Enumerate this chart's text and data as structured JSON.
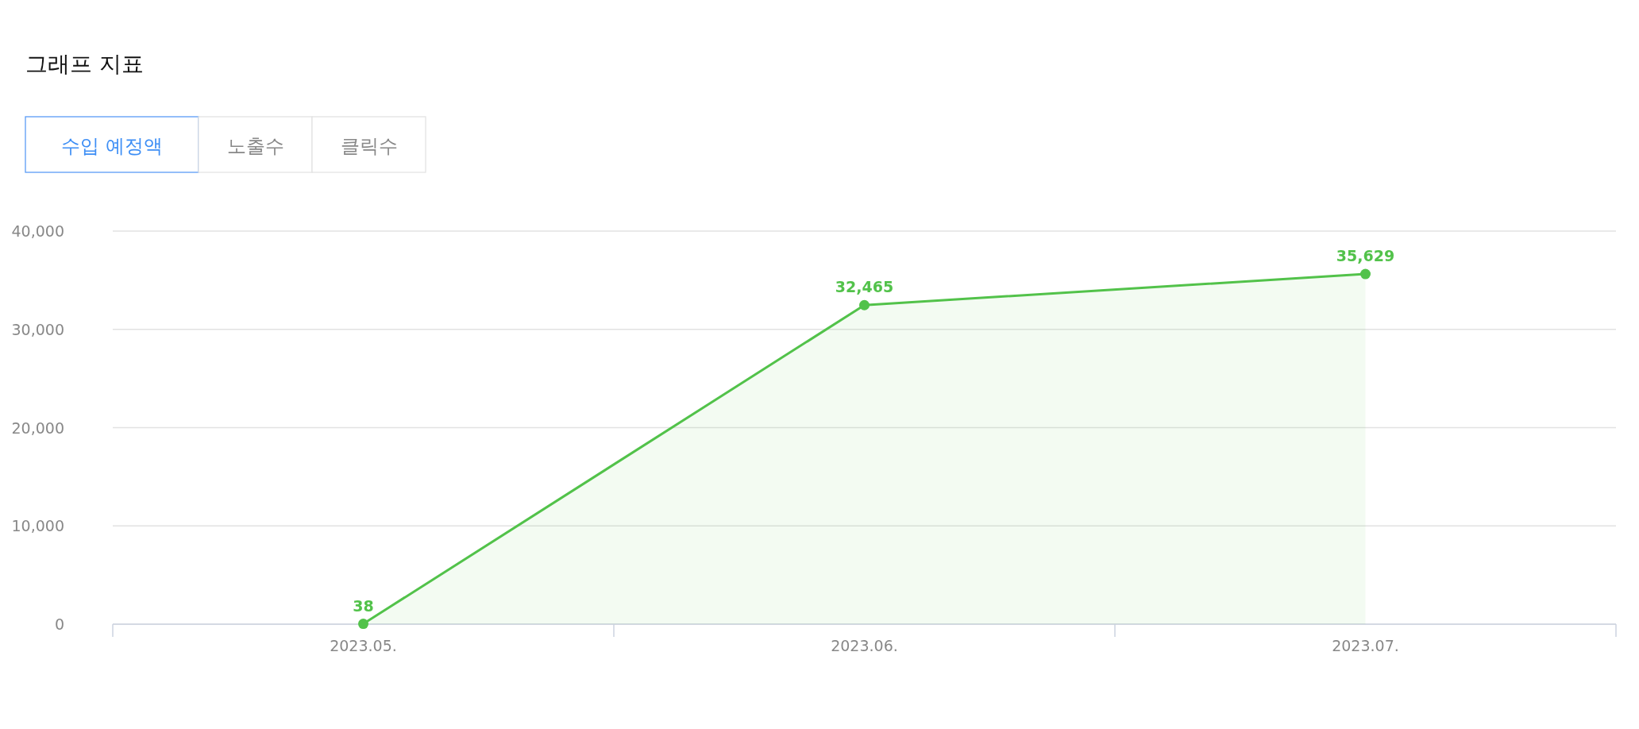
{
  "chart_data": {
    "type": "area",
    "title": "그래프 지표",
    "annotations": [
      "수입 예정액",
      "노출수",
      "클릭수"
    ],
    "categories": [
      "2023.05.",
      "2023.06.",
      "2023.07."
    ],
    "series": [
      {
        "color": "#52c24a",
        "values": [
          38,
          32465,
          35629
        ],
        "value_labels": [
          "38",
          "32,465",
          "35,629"
        ]
      }
    ],
    "ylim": [
      0,
      40000
    ],
    "yticks": [
      {
        "value": 0,
        "label": "0"
      },
      {
        "value": 10000,
        "label": "10,000"
      },
      {
        "value": 20000,
        "label": "20,000"
      },
      {
        "value": 30000,
        "label": "30,000"
      },
      {
        "value": 40000,
        "label": "40,000"
      }
    ],
    "grid": "y",
    "marker": "circle"
  }
}
